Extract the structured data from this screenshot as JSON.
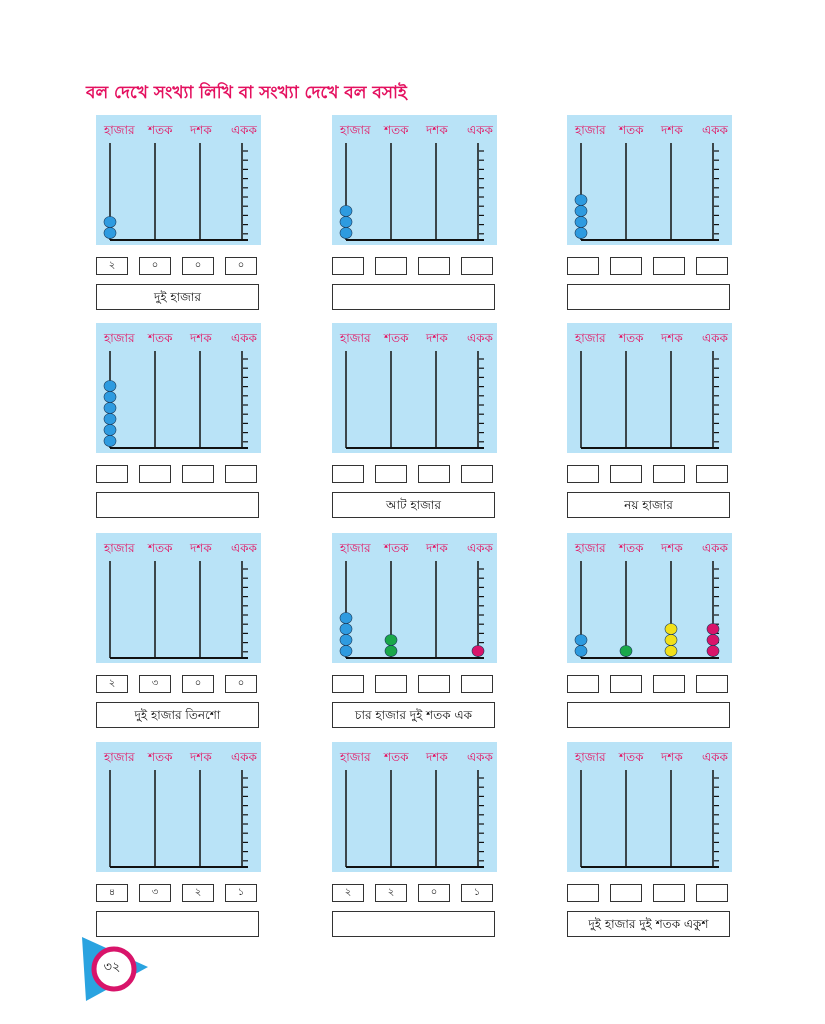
{
  "page": {
    "title": "বল দেখে সংখ্যা লিখি বা সংখ্যা দেখে বল বসাই",
    "page_number": "৩২",
    "colors": {
      "title": "#e4105f",
      "panel": "#b9e3f7",
      "bead_blue": "#2e9be0",
      "bead_green": "#1aa84a",
      "bead_yellow": "#f2e01a",
      "bead_magenta": "#d8146a"
    }
  },
  "column_labels": [
    "হাজার",
    "শতক",
    "দশক",
    "একক"
  ],
  "cards": [
    {
      "beads": [
        2,
        0,
        0,
        0
      ],
      "digits": [
        "২",
        "০",
        "০",
        "০"
      ],
      "words": "দুই হাজার"
    },
    {
      "beads": [
        3,
        0,
        0,
        0
      ],
      "digits": [
        "",
        "",
        "",
        ""
      ],
      "words": ""
    },
    {
      "beads": [
        4,
        0,
        0,
        0
      ],
      "digits": [
        "",
        "",
        "",
        ""
      ],
      "words": ""
    },
    {
      "beads": [
        6,
        0,
        0,
        0
      ],
      "digits": [
        "",
        "",
        "",
        ""
      ],
      "words": ""
    },
    {
      "beads": [
        0,
        0,
        0,
        0
      ],
      "digits": [
        "",
        "",
        "",
        ""
      ],
      "words": "আট হাজার"
    },
    {
      "beads": [
        0,
        0,
        0,
        0
      ],
      "digits": [
        "",
        "",
        "",
        ""
      ],
      "words": "নয় হাজার"
    },
    {
      "beads": [
        0,
        0,
        0,
        0
      ],
      "digits": [
        "২",
        "৩",
        "০",
        "০"
      ],
      "words": "দুই হাজার তিনশো"
    },
    {
      "beads": [
        4,
        2,
        0,
        1
      ],
      "digits": [
        "",
        "",
        "",
        ""
      ],
      "words": "চার হাজার দুই শতক এক"
    },
    {
      "beads": [
        2,
        1,
        3,
        3
      ],
      "digits": [
        "",
        "",
        "",
        ""
      ],
      "words": ""
    },
    {
      "beads": [
        0,
        0,
        0,
        0
      ],
      "digits": [
        "৪",
        "৩",
        "২",
        "১"
      ],
      "words": ""
    },
    {
      "beads": [
        0,
        0,
        0,
        0
      ],
      "digits": [
        "২",
        "২",
        "০",
        "১"
      ],
      "words": ""
    },
    {
      "beads": [
        0,
        0,
        0,
        0
      ],
      "digits": [
        "",
        "",
        "",
        ""
      ],
      "words": "দুই হাজার দুই শতক একুশ"
    }
  ]
}
